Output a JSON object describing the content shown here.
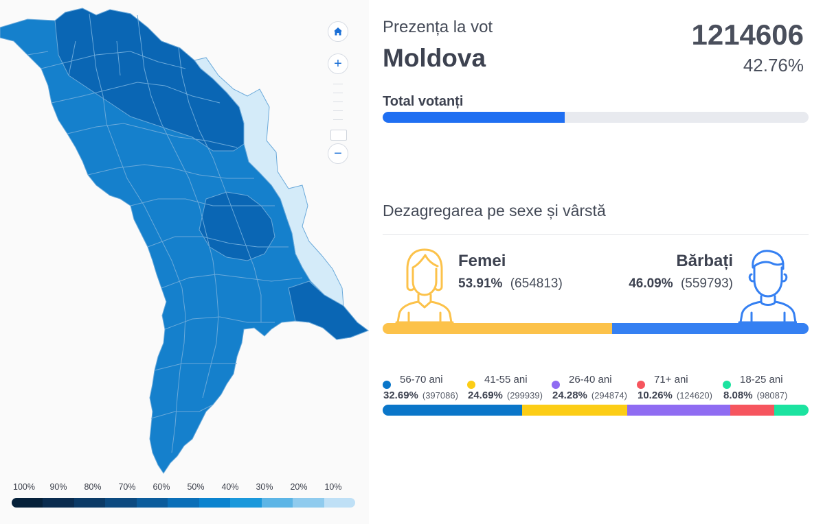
{
  "map": {
    "zoom_in_label": "+",
    "zoom_out_label": "−",
    "legend": {
      "labels": [
        "100%",
        "90%",
        "80%",
        "70%",
        "60%",
        "50%",
        "40%",
        "30%",
        "20%",
        "10%"
      ],
      "colors": [
        "#06213a",
        "#0a2c4f",
        "#0b3a66",
        "#0c4a80",
        "#0b5c9c",
        "#0a6fb8",
        "#0a83cf",
        "#1a98db",
        "#5cb5e6",
        "#8fcbee",
        "#bfe0f6"
      ]
    },
    "region_colors": {
      "dark": "#0a66b4",
      "mid": "#0b73bd",
      "light": "#1580cc",
      "pale": "#d4ebf9",
      "border": "#6aa9da"
    }
  },
  "header": {
    "section_title": "Prezența la vot",
    "region_name": "Moldova",
    "total_voters": "1214606",
    "total_percent": "42.76%"
  },
  "turnout_bar": {
    "label": "Total votanți",
    "percent": 42.76,
    "fill_color": "#1f6ff2",
    "track_color": "#e8eaef"
  },
  "demographics": {
    "title": "Dezagregarea pe sexe și vârstă",
    "female": {
      "name": "Femei",
      "percent": "53.91%",
      "count": "(654813)",
      "share": 53.91,
      "color": "#fcc24a"
    },
    "male": {
      "name": "Bărbați",
      "percent": "46.09%",
      "count": "(559793)",
      "share": 46.09,
      "color": "#3580f2"
    },
    "age_groups": [
      {
        "label": "56-70 ani",
        "percent": "32.69%",
        "count": "(397086)",
        "share": 32.69,
        "color": "#0a76c9"
      },
      {
        "label": "41-55 ani",
        "percent": "24.69%",
        "count": "(299939)",
        "share": 24.69,
        "color": "#fccd16"
      },
      {
        "label": "26-40 ani",
        "percent": "24.28%",
        "count": "(294874)",
        "share": 24.28,
        "color": "#8f6cf2"
      },
      {
        "label": "71+ ani",
        "percent": "10.26%",
        "count": "(124620)",
        "share": 10.26,
        "color": "#f6555e"
      },
      {
        "label": "18-25 ani",
        "percent": "8.08%",
        "count": "(98087)",
        "share": 8.08,
        "color": "#1ce3a0"
      }
    ]
  }
}
